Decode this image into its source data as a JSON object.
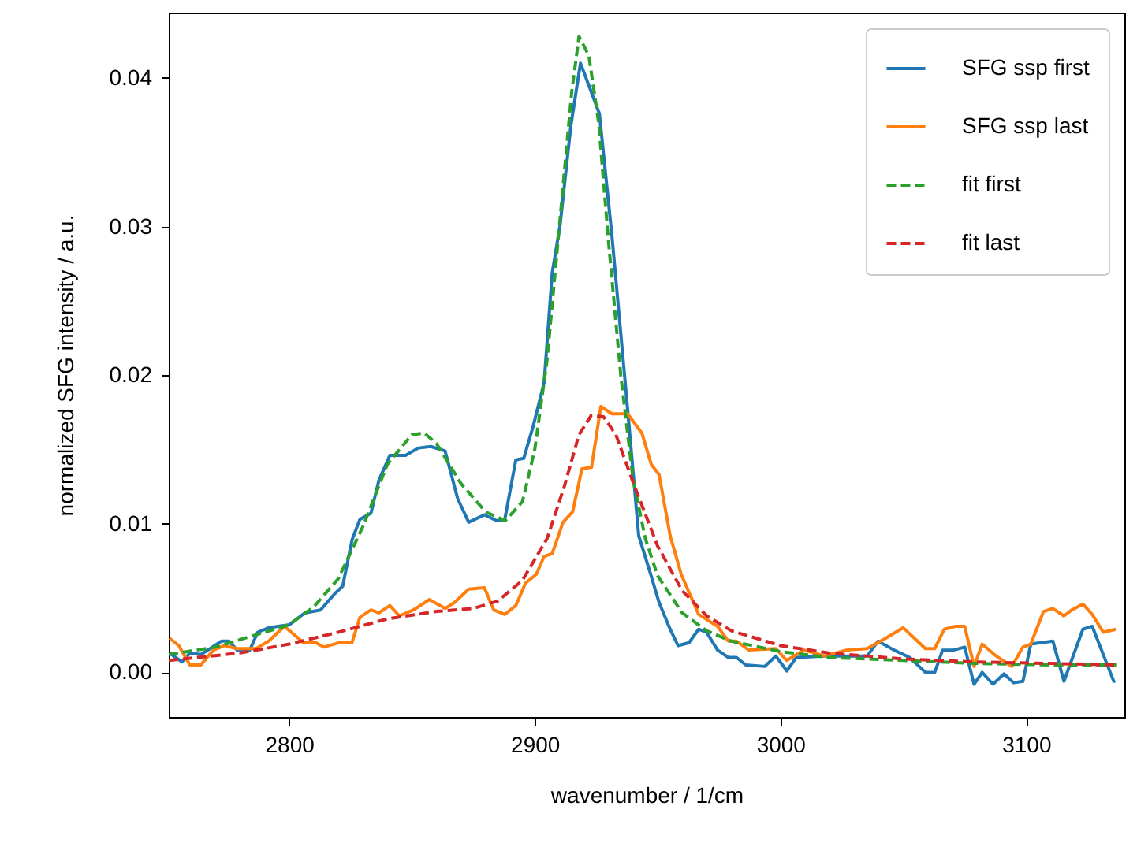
{
  "chart_data": {
    "type": "line",
    "xlabel": "wavenumber / 1/cm",
    "ylabel": "normalized SFG intensity / a.u.",
    "xlim": [
      2751,
      3140
    ],
    "ylim": [
      -0.003,
      0.0444
    ],
    "xticks": [
      2800,
      2900,
      3000,
      3100
    ],
    "yticks": [
      {
        "value": 0,
        "label": "0.00"
      },
      {
        "value": 0.01,
        "label": "0.01"
      },
      {
        "value": 0.02,
        "label": "0.02"
      },
      {
        "value": 0.03,
        "label": "0.03"
      },
      {
        "value": 0.04,
        "label": "0.04"
      }
    ],
    "grid": false,
    "legend": "top right",
    "series": [
      {
        "name": "SFG ssp first",
        "color": "#1f77b4",
        "line_style": "solid",
        "x": [
          2751.3,
          2756.4,
          2759.6,
          2764.1,
          2772.4,
          2775.6,
          2778.8,
          2784.0,
          2787.2,
          2791.7,
          2800,
          2806.4,
          2812.8,
          2818.6,
          2821.8,
          2825.6,
          2828.8,
          2833.3,
          2836.5,
          2841.0,
          2847.4,
          2852.6,
          2857.7,
          2863.5,
          2868.6,
          2873.1,
          2879.5,
          2884.6,
          2887.8,
          2892.3,
          2895.5,
          2899.4,
          2903.8,
          2907.1,
          2910.3,
          2914.7,
          2918.6,
          2926.3,
          2931.4,
          2937.2,
          2942.3,
          2946.8,
          2950.6,
          2955.1,
          2958.3,
          2962.8,
          2966.7,
          2969.9,
          2974.4,
          2978.8,
          2982.1,
          2985.9,
          2993.6,
          2998.1,
          3002.6,
          3006.4,
          3017.9,
          3035.3,
          3039.7,
          3046.2,
          3052.6,
          3059.0,
          3062.8,
          3066.0,
          3070.5,
          3075.0,
          3078.8,
          3082.1,
          3086.5,
          3091.0,
          3094.9,
          3098.7,
          3101.9,
          3110.9,
          3115.4,
          3123.1,
          3126.9,
          3135.9
        ],
        "values": [
          0.0013,
          0.0007,
          0.0013,
          0.0012,
          0.0021,
          0.0021,
          0.0015,
          0.0015,
          0.0027,
          0.003,
          0.0032,
          0.004,
          0.0042,
          0.0053,
          0.0058,
          0.0089,
          0.0103,
          0.0107,
          0.0129,
          0.0146,
          0.0146,
          0.0151,
          0.0152,
          0.0149,
          0.0117,
          0.0101,
          0.0106,
          0.0102,
          0.0103,
          0.0143,
          0.0144,
          0.0166,
          0.0195,
          0.0269,
          0.0301,
          0.0368,
          0.041,
          0.0376,
          0.0294,
          0.0188,
          0.0092,
          0.0068,
          0.0047,
          0.0029,
          0.0018,
          0.002,
          0.0029,
          0.0027,
          0.0015,
          0.001,
          0.001,
          0.0005,
          0.0004,
          0.0011,
          0.0001,
          0.001,
          0.0011,
          0.0011,
          0.0021,
          0.0015,
          0.001,
          0.0,
          0.0,
          0.0015,
          0.0015,
          0.0017,
          -0.0008,
          0.0,
          -0.0008,
          -0.0001,
          -0.0007,
          -0.0006,
          0.0019,
          0.0021,
          -0.0006,
          0.0029,
          0.0031,
          -0.0007
        ]
      },
      {
        "name": "SFG ssp last",
        "color": "#ff7f0e",
        "line_style": "solid",
        "x": [
          2751.3,
          2755.1,
          2759.6,
          2764.1,
          2769.2,
          2773.7,
          2778.8,
          2786.5,
          2791.7,
          2798.1,
          2805.8,
          2810.9,
          2814.1,
          2820.5,
          2825.6,
          2828.8,
          2833.3,
          2836.5,
          2841.0,
          2844.9,
          2850.6,
          2857.1,
          2863.5,
          2867.3,
          2873.1,
          2879.5,
          2883.3,
          2887.8,
          2892.3,
          2896.2,
          2900.6,
          2903.8,
          2907.1,
          2911.5,
          2915.4,
          2919.2,
          2923.1,
          2926.9,
          2931.4,
          2937.8,
          2943.6,
          2947.4,
          2950.6,
          2955.1,
          2959.6,
          2966.7,
          2974.4,
          2978.8,
          2982.1,
          2987.2,
          2998.1,
          3002.6,
          3009.6,
          3017.9,
          3026.9,
          3035.3,
          3042.9,
          3050.0,
          3059.0,
          3062.8,
          3066.7,
          3071.2,
          3075.0,
          3078.8,
          3082.1,
          3087.8,
          3094.2,
          3098.7,
          3101.9,
          3107.1,
          3110.9,
          3115.4,
          3118.6,
          3123.1,
          3126.9,
          3131.4,
          3136.5
        ],
        "values": [
          0.0023,
          0.0018,
          0.0005,
          0.0005,
          0.0015,
          0.0018,
          0.0016,
          0.0016,
          0.0021,
          0.0031,
          0.002,
          0.002,
          0.0017,
          0.002,
          0.002,
          0.0037,
          0.0042,
          0.004,
          0.0045,
          0.0038,
          0.0042,
          0.0049,
          0.0043,
          0.0047,
          0.0056,
          0.0057,
          0.0042,
          0.0039,
          0.0045,
          0.006,
          0.0066,
          0.0078,
          0.008,
          0.0101,
          0.0108,
          0.0137,
          0.0138,
          0.0179,
          0.0174,
          0.0174,
          0.0161,
          0.014,
          0.0133,
          0.0092,
          0.0066,
          0.0039,
          0.0031,
          0.0021,
          0.0021,
          0.0015,
          0.0016,
          0.0008,
          0.0015,
          0.0011,
          0.0015,
          0.0016,
          0.0023,
          0.003,
          0.0016,
          0.0016,
          0.0029,
          0.0031,
          0.0031,
          0.0004,
          0.0019,
          0.0011,
          0.0004,
          0.0017,
          0.0019,
          0.0041,
          0.0043,
          0.0038,
          0.0042,
          0.0046,
          0.0039,
          0.0027,
          0.0029
        ]
      },
      {
        "name": "fit first",
        "color": "#2ca02c",
        "line_style": "dashed",
        "x": [
          2751,
          2770,
          2790,
          2800,
          2810,
          2820,
          2830,
          2840,
          2850,
          2855,
          2860,
          2870,
          2880,
          2888,
          2895,
          2900,
          2905,
          2910,
          2915,
          2918,
          2922,
          2926,
          2930,
          2935,
          2940,
          2945,
          2950,
          2960,
          2970,
          2980,
          3000,
          3020,
          3050,
          3080,
          3110,
          3137
        ],
        "values": [
          0.0012,
          0.0017,
          0.0027,
          0.0032,
          0.0044,
          0.0063,
          0.0098,
          0.014,
          0.016,
          0.0161,
          0.0154,
          0.0127,
          0.0108,
          0.0102,
          0.0115,
          0.015,
          0.021,
          0.03,
          0.039,
          0.0428,
          0.0415,
          0.037,
          0.029,
          0.02,
          0.013,
          0.009,
          0.0065,
          0.004,
          0.0028,
          0.0021,
          0.0014,
          0.001,
          0.0008,
          0.0006,
          0.0005,
          0.0005
        ]
      },
      {
        "name": "fit last",
        "color": "#d62728",
        "line_style": "dashed",
        "x": [
          2751,
          2780,
          2800,
          2820,
          2840,
          2860,
          2875,
          2885,
          2895,
          2905,
          2912,
          2918,
          2923,
          2928,
          2933,
          2940,
          2950,
          2960,
          2970,
          2980,
          3000,
          3020,
          3050,
          3080,
          3110,
          3137
        ],
        "values": [
          0.0008,
          0.0013,
          0.0019,
          0.0027,
          0.0036,
          0.0041,
          0.0043,
          0.0048,
          0.0062,
          0.009,
          0.0125,
          0.016,
          0.0173,
          0.0172,
          0.016,
          0.0128,
          0.0085,
          0.0055,
          0.0038,
          0.0028,
          0.0018,
          0.0013,
          0.0009,
          0.0007,
          0.0006,
          0.0005
        ]
      }
    ]
  }
}
